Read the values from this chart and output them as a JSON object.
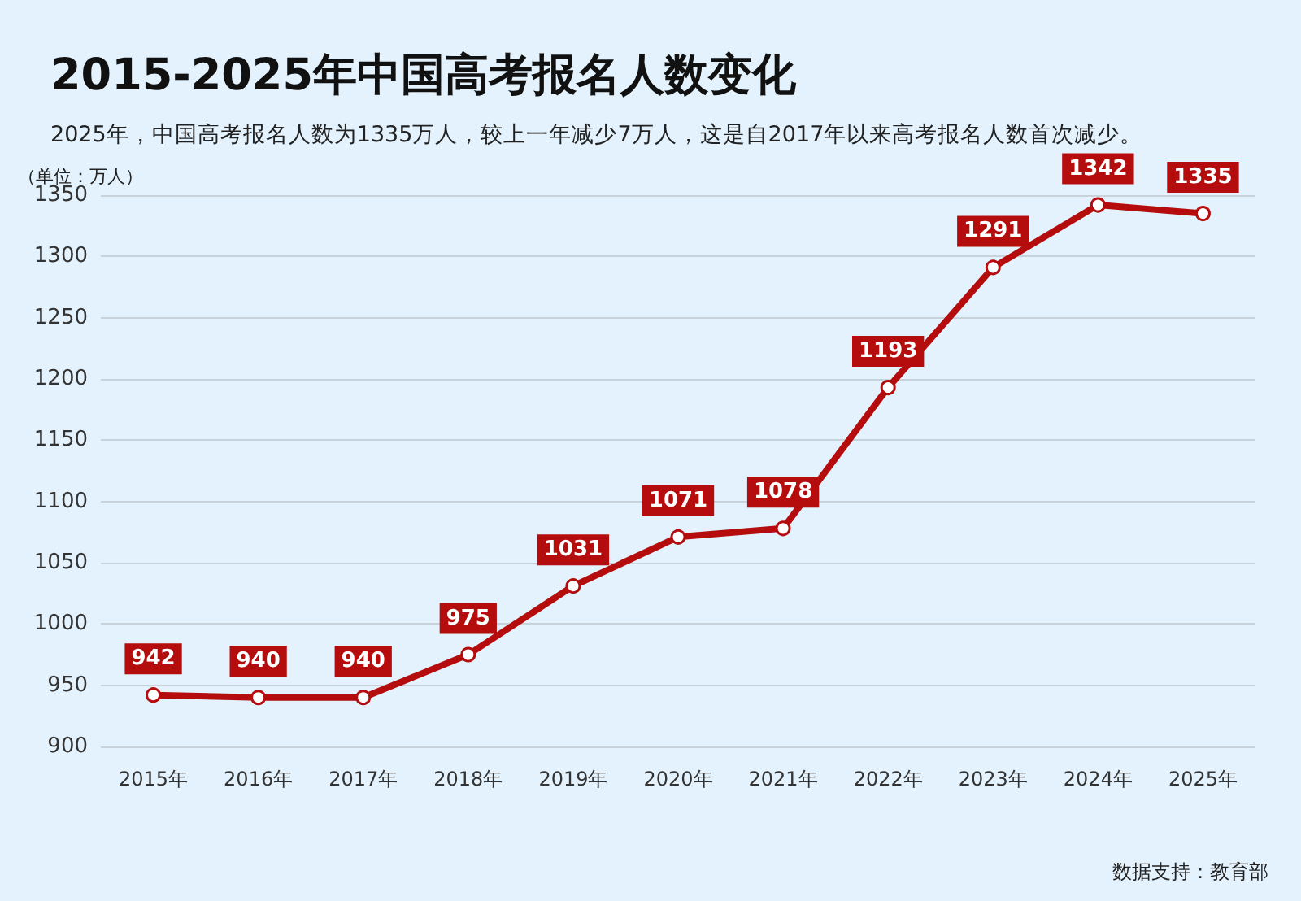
{
  "chart_data": {
    "type": "line",
    "title": "2015-2025年中国高考报名人数变化",
    "subtitle": "2025年，中国高考报名人数为1335万人，较上一年减少7万人，这是自2017年以来高考报名人数首次减少。",
    "ylabel": "（单位：万人）",
    "categories": [
      "2015年",
      "2016年",
      "2017年",
      "2018年",
      "2019年",
      "2020年",
      "2021年",
      "2022年",
      "2023年",
      "2024年",
      "2025年"
    ],
    "series": [
      {
        "color": "#b50d0d",
        "values": [
          942,
          940,
          940,
          975,
          1031,
          1071,
          1078,
          1193,
          1291,
          1342,
          1335
        ]
      }
    ],
    "ylim": [
      900,
      1350
    ],
    "yticks": [
      900,
      950,
      1000,
      1050,
      1100,
      1150,
      1200,
      1250,
      1300,
      1350
    ],
    "grid": "y",
    "marker": "circle",
    "line_style": "solid",
    "data_labels": true,
    "annotations": [
      "数据支持：教育部"
    ]
  }
}
